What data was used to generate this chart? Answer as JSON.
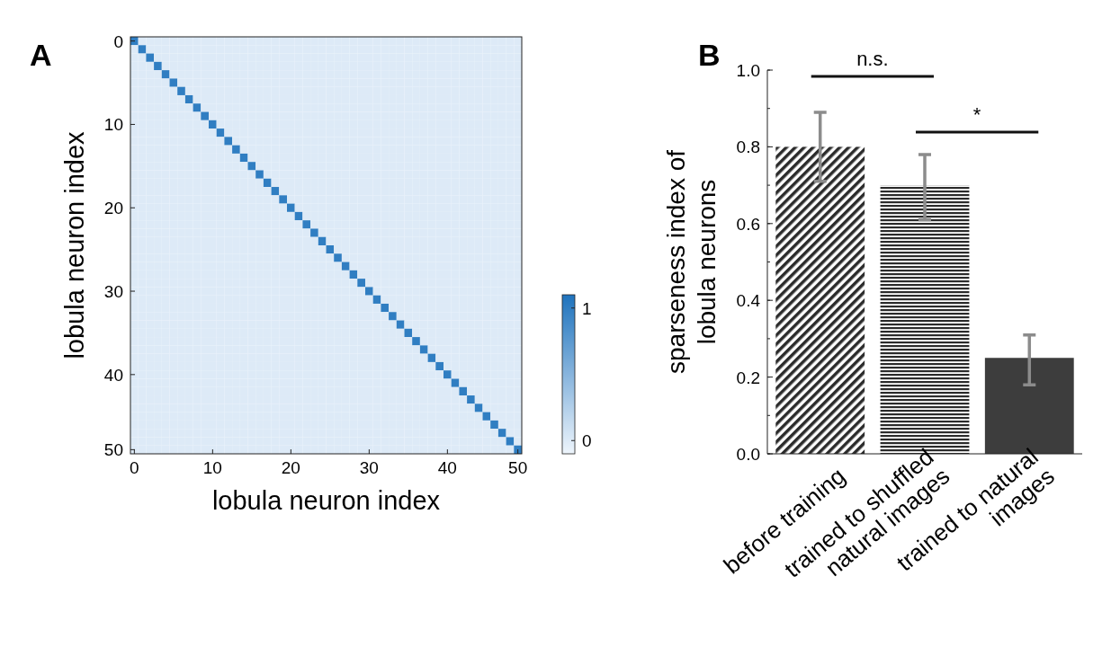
{
  "chart_data": [
    {
      "type": "heatmap",
      "title": "A",
      "xlabel": "lobula neuron index",
      "ylabel": "lobula neuron index",
      "categories": [
        "0",
        null,
        null,
        null,
        null,
        null,
        null,
        null,
        null,
        null,
        "10",
        null,
        null,
        null,
        null,
        null,
        null,
        null,
        null,
        null,
        "20",
        null,
        null,
        null,
        null,
        null,
        null,
        null,
        null,
        null,
        "30",
        null,
        null,
        null,
        null,
        null,
        null,
        null,
        null,
        null,
        "40",
        null,
        null,
        null,
        null,
        null,
        null,
        null,
        null,
        "50"
      ],
      "y_categories": [
        "0",
        null,
        null,
        null,
        null,
        null,
        null,
        null,
        null,
        null,
        "10",
        null,
        null,
        null,
        null,
        null,
        null,
        null,
        null,
        null,
        "20",
        null,
        null,
        null,
        null,
        null,
        null,
        null,
        null,
        null,
        "30",
        null,
        null,
        null,
        null,
        null,
        null,
        null,
        null,
        null,
        "40",
        null,
        null,
        null,
        null,
        null,
        null,
        null,
        null,
        "50"
      ],
      "clim": [
        -0.1,
        1.1
      ],
      "cticks": [
        0,
        1
      ],
      "cells": [
        [
          1,
          0,
          0,
          0,
          0,
          0,
          0,
          0,
          0,
          0,
          0,
          0,
          0,
          0,
          0,
          0,
          0,
          0,
          0,
          0,
          0,
          0,
          0,
          0,
          0,
          0,
          0,
          0,
          0,
          0,
          0,
          0,
          0,
          0,
          0,
          0,
          0,
          0,
          0,
          0,
          0,
          0,
          0,
          0,
          0,
          0,
          0,
          0,
          0,
          0
        ],
        [
          0,
          1,
          0,
          0,
          0,
          0,
          0,
          0,
          0,
          0,
          0,
          0,
          0,
          0,
          0,
          0,
          0,
          0,
          0,
          0,
          0,
          0,
          0,
          0,
          0,
          0,
          0,
          0,
          0,
          0,
          0,
          0,
          0,
          0,
          0,
          0,
          0,
          0,
          0,
          0,
          0,
          0,
          0,
          0,
          0,
          0,
          0,
          0,
          0,
          0
        ],
        [
          0,
          0,
          1,
          0,
          0,
          0,
          0,
          0,
          0,
          0,
          0,
          0,
          0,
          0,
          0,
          0,
          0,
          0,
          0,
          0,
          0,
          0,
          0,
          0,
          0,
          0,
          0,
          0,
          0,
          0,
          0,
          0,
          0,
          0,
          0,
          0,
          0,
          0,
          0,
          0,
          0,
          0,
          0,
          0,
          0,
          0,
          0,
          0,
          0,
          0
        ],
        [
          0,
          0,
          0,
          1,
          0,
          0,
          0,
          0,
          0,
          0,
          0,
          0,
          0,
          0,
          0,
          0,
          0,
          0,
          0,
          0,
          0,
          0,
          0,
          0,
          0,
          0,
          0,
          0,
          0,
          0,
          0,
          0,
          0,
          0,
          0,
          0,
          0,
          0,
          0,
          0,
          0,
          0,
          0,
          0,
          0,
          0,
          0,
          0,
          0,
          0
        ],
        [
          0,
          0,
          0,
          0,
          1,
          0,
          0,
          0,
          0,
          0,
          0,
          0,
          0,
          0,
          0,
          0,
          0,
          0,
          0,
          0,
          0,
          0,
          0,
          0,
          0,
          0,
          0,
          0,
          0,
          0,
          0,
          0,
          0,
          0,
          0,
          0,
          0,
          0,
          0,
          0,
          0,
          0,
          0,
          0,
          0,
          0,
          0,
          0,
          0,
          0
        ],
        [
          0,
          0,
          0,
          0,
          0,
          1,
          0,
          0,
          0,
          0,
          0,
          0,
          0,
          0,
          0,
          0,
          0,
          0,
          0,
          0,
          0,
          0,
          0,
          0,
          0,
          0,
          0,
          0,
          0,
          0,
          0,
          0,
          0,
          0,
          0,
          0,
          0,
          0,
          0,
          0,
          0,
          0,
          0,
          0,
          0,
          0,
          0,
          0,
          0,
          0
        ],
        [
          0,
          0,
          0,
          0,
          0,
          0,
          1,
          0,
          0,
          0,
          0,
          0,
          0,
          0,
          0,
          0,
          0,
          0,
          0,
          0,
          0,
          0,
          0,
          0,
          0,
          0,
          0,
          0,
          0,
          0,
          0,
          0,
          0,
          0,
          0,
          0,
          0,
          0,
          0,
          0,
          0,
          0,
          0,
          0,
          0,
          0,
          0,
          0,
          0,
          0
        ],
        [
          0,
          0,
          0,
          0,
          0,
          0,
          0,
          1,
          0,
          0,
          0,
          0,
          0,
          0,
          0,
          0,
          0,
          0,
          0,
          0,
          0,
          0,
          0,
          0,
          0,
          0,
          0,
          0,
          0,
          0,
          0,
          0,
          0,
          0,
          0,
          0,
          0,
          0,
          0,
          0,
          0,
          0,
          0,
          0,
          0,
          0,
          0,
          0,
          0,
          0
        ],
        [
          0,
          0,
          0,
          0,
          0,
          0,
          0,
          0,
          1,
          0,
          0,
          0,
          0,
          0,
          0,
          0,
          0,
          0,
          0,
          0,
          0,
          0,
          0,
          0,
          0,
          0,
          0,
          0,
          0,
          0,
          0,
          0,
          0,
          0,
          0,
          0,
          0,
          0,
          0,
          0,
          0,
          0,
          0,
          0,
          0,
          0,
          0,
          0,
          0,
          0
        ],
        [
          0,
          0,
          0,
          0,
          0,
          0,
          0,
          0,
          0,
          1,
          0,
          0,
          0,
          0,
          0,
          0,
          0,
          0,
          0,
          0,
          0,
          0,
          0,
          0,
          0,
          0,
          0,
          0,
          0,
          0,
          0,
          0,
          0,
          0,
          0,
          0,
          0,
          0,
          0,
          0,
          0,
          0,
          0,
          0,
          0,
          0,
          0,
          0,
          0,
          0
        ],
        [
          0,
          0,
          0,
          0,
          0,
          0,
          0,
          0,
          0,
          0,
          1,
          0,
          0,
          0,
          0,
          0,
          0,
          0,
          0,
          0,
          0,
          0,
          0,
          0,
          0,
          0,
          0,
          0,
          0,
          0,
          0,
          0,
          0,
          0,
          0,
          0,
          0,
          0,
          0,
          0,
          0,
          0,
          0,
          0,
          0,
          0,
          0,
          0,
          0,
          0
        ],
        [
          0,
          0,
          0,
          0,
          0,
          0,
          0,
          0,
          0,
          0,
          0,
          1,
          0,
          0,
          0,
          0,
          0,
          0,
          0,
          0,
          0,
          0,
          0,
          0,
          0,
          0,
          0,
          0,
          0,
          0,
          0,
          0,
          0,
          0,
          0,
          0,
          0,
          0,
          0,
          0,
          0,
          0,
          0,
          0,
          0,
          0,
          0,
          0,
          0,
          0
        ],
        [
          0,
          0,
          0,
          0,
          0,
          0,
          0,
          0,
          0,
          0,
          0,
          0,
          1,
          0,
          0,
          0,
          0,
          0,
          0,
          0,
          0,
          0,
          0,
          0,
          0,
          0,
          0,
          0,
          0,
          0,
          0,
          0,
          0,
          0,
          0,
          0,
          0,
          0,
          0,
          0,
          0,
          0,
          0,
          0,
          0,
          0,
          0,
          0,
          0,
          0
        ],
        [
          0,
          0,
          0,
          0,
          0,
          0,
          0,
          0,
          0,
          0,
          0,
          0,
          0,
          1,
          0,
          0,
          0,
          0,
          0,
          0,
          0,
          0,
          0,
          0,
          0,
          0,
          0,
          0,
          0,
          0,
          0,
          0,
          0,
          0,
          0,
          0,
          0,
          0,
          0,
          0,
          0,
          0,
          0,
          0,
          0,
          0,
          0,
          0,
          0,
          0
        ],
        [
          0,
          0,
          0,
          0,
          0,
          0,
          0,
          0,
          0,
          0,
          0,
          0,
          0,
          0,
          1,
          0,
          0,
          0,
          0,
          0,
          0,
          0,
          0,
          0,
          0,
          0,
          0,
          0,
          0,
          0,
          0,
          0,
          0,
          0,
          0,
          0,
          0,
          0,
          0,
          0,
          0,
          0,
          0,
          0,
          0,
          0,
          0,
          0,
          0,
          0
        ],
        [
          0,
          0,
          0,
          0,
          0,
          0,
          0,
          0,
          0,
          0,
          0,
          0,
          0,
          0,
          0,
          1,
          0,
          0,
          0,
          0,
          0,
          0,
          0,
          0,
          0,
          0,
          0,
          0,
          0,
          0,
          0,
          0,
          0,
          0,
          0,
          0,
          0,
          0,
          0,
          0,
          0,
          0,
          0,
          0,
          0,
          0,
          0,
          0,
          0,
          0
        ],
        [
          0,
          0,
          0,
          0,
          0,
          0,
          0,
          0,
          0,
          0,
          0,
          0,
          0,
          0,
          0,
          0,
          1,
          0,
          0,
          0,
          0,
          0,
          0,
          0,
          0,
          0,
          0,
          0,
          0,
          0,
          0,
          0,
          0,
          0,
          0,
          0,
          0,
          0,
          0,
          0,
          0,
          0,
          0,
          0,
          0,
          0,
          0,
          0,
          0,
          0
        ],
        [
          0,
          0,
          0,
          0,
          0,
          0,
          0,
          0,
          0,
          0,
          0,
          0,
          0,
          0,
          0,
          0,
          0,
          1,
          0,
          0,
          0,
          0,
          0,
          0,
          0,
          0,
          0,
          0,
          0,
          0,
          0,
          0,
          0,
          0,
          0,
          0,
          0,
          0,
          0,
          0,
          0,
          0,
          0,
          0,
          0,
          0,
          0,
          0,
          0,
          0
        ],
        [
          0,
          0,
          0,
          0,
          0,
          0,
          0,
          0,
          0,
          0,
          0,
          0,
          0,
          0,
          0,
          0,
          0,
          0,
          1,
          0,
          0,
          0,
          0,
          0,
          0,
          0,
          0,
          0,
          0,
          0,
          0,
          0,
          0,
          0,
          0,
          0,
          0,
          0,
          0,
          0,
          0,
          0,
          0,
          0,
          0,
          0,
          0,
          0,
          0,
          0
        ],
        [
          0,
          0,
          0,
          0,
          0,
          0,
          0,
          0,
          0,
          0,
          0,
          0,
          0,
          0,
          0,
          0,
          0,
          0,
          0,
          1,
          0,
          0,
          0,
          0,
          0,
          0,
          0,
          0,
          0,
          0,
          0,
          0,
          0,
          0,
          0,
          0,
          0,
          0,
          0,
          0,
          0,
          0,
          0,
          0,
          0,
          0,
          0,
          0,
          0,
          0
        ],
        [
          0,
          0,
          0,
          0,
          0,
          0,
          0,
          0,
          0,
          0,
          0,
          0,
          0,
          0,
          0,
          0,
          0,
          0,
          0,
          0,
          1,
          0,
          0,
          0,
          0,
          0,
          0,
          0,
          0,
          0,
          0,
          0,
          0,
          0,
          0,
          0,
          0,
          0,
          0,
          0,
          0,
          0,
          0,
          0,
          0,
          0,
          0,
          0,
          0,
          0
        ],
        [
          0,
          0,
          0,
          0,
          0,
          0,
          0,
          0,
          0,
          0,
          0,
          0,
          0,
          0,
          0,
          0,
          0,
          0,
          0,
          0,
          0,
          1,
          0,
          0,
          0,
          0,
          0,
          0,
          0,
          0,
          0,
          0,
          0,
          0,
          0,
          0,
          0,
          0,
          0,
          0,
          0,
          0,
          0,
          0,
          0,
          0,
          0,
          0,
          0,
          0
        ],
        [
          0,
          0,
          0,
          0,
          0,
          0,
          0,
          0,
          0,
          0,
          0,
          0,
          0,
          0,
          0,
          0,
          0,
          0,
          0,
          0,
          0,
          0,
          1,
          0,
          0,
          0,
          0,
          0,
          0,
          0,
          0,
          0,
          0,
          0,
          0,
          0,
          0,
          0,
          0,
          0,
          0,
          0,
          0,
          0,
          0,
          0,
          0,
          0,
          0,
          0
        ],
        [
          0,
          0,
          0,
          0,
          0,
          0,
          0,
          0,
          0,
          0,
          0,
          0,
          0,
          0,
          0,
          0,
          0,
          0,
          0,
          0,
          0,
          0,
          0,
          1,
          0,
          0,
          0,
          0,
          0,
          0,
          0,
          0,
          0,
          0,
          0,
          0,
          0,
          0,
          0,
          0,
          0,
          0,
          0,
          0,
          0,
          0,
          0,
          0,
          0,
          0
        ],
        [
          0,
          0,
          0,
          0,
          0,
          0,
          0,
          0,
          0,
          0,
          0,
          0,
          0,
          0,
          0,
          0,
          0,
          0,
          0,
          0,
          0,
          0,
          0,
          0,
          1,
          0,
          0,
          0,
          0,
          0,
          0,
          0,
          0,
          0,
          0,
          0,
          0,
          0,
          0,
          0,
          0,
          0,
          0,
          0,
          0,
          0,
          0,
          0,
          0,
          0
        ],
        [
          0,
          0,
          0,
          0,
          0,
          0,
          0,
          0,
          0,
          0,
          0,
          0,
          0,
          0,
          0,
          0,
          0,
          0,
          0,
          0,
          0,
          0,
          0,
          0,
          0,
          1,
          0,
          0,
          0,
          0,
          0,
          0,
          0,
          0,
          0,
          0,
          0,
          0,
          0,
          0,
          0,
          0,
          0,
          0,
          0,
          0,
          0,
          0,
          0,
          0
        ],
        [
          0,
          0,
          0,
          0,
          0,
          0,
          0,
          0,
          0,
          0,
          0,
          0,
          0,
          0,
          0,
          0,
          0,
          0,
          0,
          0,
          0,
          0,
          0,
          0,
          0,
          0,
          1,
          0,
          0,
          0,
          0,
          0,
          0,
          0,
          0,
          0,
          0,
          0,
          0,
          0,
          0,
          0,
          0,
          0,
          0,
          0,
          0,
          0,
          0,
          0
        ],
        [
          0,
          0,
          0,
          0,
          0,
          0,
          0,
          0,
          0,
          0,
          0,
          0,
          0,
          0,
          0,
          0,
          0,
          0,
          0,
          0,
          0,
          0,
          0,
          0,
          0,
          0,
          0,
          1,
          0,
          0,
          0,
          0,
          0,
          0,
          0,
          0,
          0,
          0,
          0,
          0,
          0,
          0,
          0,
          0,
          0,
          0,
          0,
          0,
          0,
          0
        ],
        [
          0,
          0,
          0,
          0,
          0,
          0,
          0,
          0,
          0,
          0,
          0,
          0,
          0,
          0,
          0,
          0,
          0,
          0,
          0,
          0,
          0,
          0,
          0,
          0,
          0,
          0,
          0,
          0,
          1,
          0,
          0,
          0,
          0,
          0,
          0,
          0,
          0,
          0,
          0,
          0,
          0,
          0,
          0,
          0,
          0,
          0,
          0,
          0,
          0,
          0
        ],
        [
          0,
          0,
          0,
          0,
          0,
          0,
          0,
          0,
          0,
          0,
          0,
          0,
          0,
          0,
          0,
          0,
          0,
          0,
          0,
          0,
          0,
          0,
          0,
          0,
          0,
          0,
          0,
          0,
          0,
          1,
          0,
          0,
          0,
          0,
          0,
          0,
          0,
          0,
          0,
          0,
          0,
          0,
          0,
          0,
          0,
          0,
          0,
          0,
          0,
          0
        ],
        [
          0,
          0,
          0,
          0,
          0,
          0,
          0,
          0,
          0,
          0,
          0,
          0,
          0,
          0,
          0,
          0,
          0,
          0,
          0,
          0,
          0,
          0,
          0,
          0,
          0,
          0,
          0,
          0,
          0,
          0,
          1,
          0,
          0,
          0,
          0,
          0,
          0,
          0,
          0,
          0,
          0,
          0,
          0,
          0,
          0,
          0,
          0,
          0,
          0,
          0
        ],
        [
          0,
          0,
          0,
          0,
          0,
          0,
          0,
          0,
          0,
          0,
          0,
          0,
          0,
          0,
          0,
          0,
          0,
          0,
          0,
          0,
          0,
          0,
          0,
          0,
          0,
          0,
          0,
          0,
          0,
          0,
          0,
          1,
          0,
          0,
          0,
          0,
          0,
          0,
          0,
          0,
          0,
          0,
          0,
          0,
          0,
          0,
          0,
          0,
          0,
          0
        ],
        [
          0,
          0,
          0,
          0,
          0,
          0,
          0,
          0,
          0,
          0,
          0,
          0,
          0,
          0,
          0,
          0,
          0,
          0,
          0,
          0,
          0,
          0,
          0,
          0,
          0,
          0,
          0,
          0,
          0,
          0,
          0,
          0,
          1,
          0,
          0,
          0,
          0,
          0,
          0,
          0,
          0,
          0,
          0,
          0,
          0,
          0,
          0,
          0,
          0,
          0
        ],
        [
          0,
          0,
          0,
          0,
          0,
          0,
          0,
          0,
          0,
          0,
          0,
          0,
          0,
          0,
          0,
          0,
          0,
          0,
          0,
          0,
          0,
          0,
          0,
          0,
          0,
          0,
          0,
          0,
          0,
          0,
          0,
          0,
          0,
          1,
          0,
          0,
          0,
          0,
          0,
          0,
          0,
          0,
          0,
          0,
          0,
          0,
          0,
          0,
          0,
          0
        ],
        [
          0,
          0,
          0,
          0,
          0,
          0,
          0,
          0,
          0,
          0,
          0,
          0,
          0,
          0,
          0,
          0,
          0,
          0,
          0,
          0,
          0,
          0,
          0,
          0,
          0,
          0,
          0,
          0,
          0,
          0,
          0,
          0,
          0,
          0,
          1,
          0,
          0,
          0,
          0,
          0,
          0,
          0,
          0,
          0,
          0,
          0,
          0,
          0,
          0,
          0
        ],
        [
          0,
          0,
          0,
          0,
          0,
          0,
          0,
          0,
          0,
          0,
          0,
          0,
          0,
          0,
          0,
          0,
          0,
          0,
          0,
          0,
          0,
          0,
          0,
          0,
          0,
          0,
          0,
          0,
          0,
          0,
          0,
          0,
          0,
          0,
          0,
          1,
          0,
          0,
          0,
          0,
          0,
          0,
          0,
          0,
          0,
          0,
          0,
          0,
          0,
          0
        ],
        [
          0,
          0,
          0,
          0,
          0,
          0,
          0,
          0,
          0,
          0,
          0,
          0,
          0,
          0,
          0,
          0,
          0,
          0,
          0,
          0,
          0,
          0,
          0,
          0,
          0,
          0,
          0,
          0,
          0,
          0,
          0,
          0,
          0,
          0,
          0,
          0,
          1,
          0,
          0,
          0,
          0,
          0,
          0,
          0,
          0,
          0,
          0,
          0,
          0,
          0
        ],
        [
          0,
          0,
          0,
          0,
          0,
          0,
          0,
          0,
          0,
          0,
          0,
          0,
          0,
          0,
          0,
          0,
          0,
          0,
          0,
          0,
          0,
          0,
          0,
          0,
          0,
          0,
          0,
          0,
          0,
          0,
          0,
          0,
          0,
          0,
          0,
          0,
          0,
          1,
          0,
          0,
          0,
          0,
          0,
          0,
          0,
          0,
          0,
          0,
          0,
          0
        ],
        [
          0,
          0,
          0,
          0,
          0,
          0,
          0,
          0,
          0,
          0,
          0,
          0,
          0,
          0,
          0,
          0,
          0,
          0,
          0,
          0,
          0,
          0,
          0,
          0,
          0,
          0,
          0,
          0,
          0,
          0,
          0,
          0,
          0,
          0,
          0,
          0,
          0,
          0,
          1,
          0,
          0,
          0,
          0,
          0,
          0,
          0,
          0,
          0,
          0,
          0
        ],
        [
          0,
          0,
          0,
          0,
          0,
          0,
          0,
          0,
          0,
          0,
          0,
          0,
          0,
          0,
          0,
          0,
          0,
          0,
          0,
          0,
          0,
          0,
          0,
          0,
          0,
          0,
          0,
          0,
          0,
          0,
          0,
          0,
          0,
          0,
          0,
          0,
          0,
          0,
          0,
          1,
          0,
          0,
          0,
          0,
          0,
          0,
          0,
          0,
          0,
          0
        ],
        [
          0,
          0,
          0,
          0,
          0,
          0,
          0,
          0,
          0,
          0,
          0,
          0,
          0,
          0,
          0,
          0,
          0,
          0,
          0,
          0,
          0,
          0,
          0,
          0,
          0,
          0,
          0,
          0,
          0,
          0,
          0,
          0,
          0,
          0,
          0,
          0,
          0,
          0,
          0,
          0,
          1,
          0,
          0,
          0,
          0,
          0,
          0,
          0,
          0,
          0
        ],
        [
          0,
          0,
          0,
          0,
          0,
          0,
          0,
          0,
          0,
          0,
          0,
          0,
          0,
          0,
          0,
          0,
          0,
          0,
          0,
          0,
          0,
          0,
          0,
          0,
          0,
          0,
          0,
          0,
          0,
          0,
          0,
          0,
          0,
          0,
          0,
          0,
          0,
          0,
          0,
          0,
          0,
          1,
          0,
          0,
          0,
          0,
          0,
          0,
          0,
          0
        ],
        [
          0,
          0,
          0,
          0,
          0,
          0,
          0,
          0,
          0,
          0,
          0,
          0,
          0,
          0,
          0,
          0,
          0,
          0,
          0,
          0,
          0,
          0,
          0,
          0,
          0,
          0,
          0,
          0,
          0,
          0,
          0,
          0,
          0,
          0,
          0,
          0,
          0,
          0,
          0,
          0,
          0,
          0,
          1,
          0,
          0,
          0,
          0,
          0,
          0,
          0
        ],
        [
          0,
          0,
          0,
          0,
          0,
          0,
          0,
          0,
          0,
          0,
          0,
          0,
          0,
          0,
          0,
          0,
          0,
          0,
          0,
          0,
          0,
          0,
          0,
          0,
          0,
          0,
          0,
          0,
          0,
          0,
          0,
          0,
          0,
          0,
          0,
          0,
          0,
          0,
          0,
          0,
          0,
          0,
          0,
          1,
          0,
          0,
          0,
          0,
          0,
          0
        ],
        [
          0,
          0,
          0,
          0,
          0,
          0,
          0,
          0,
          0,
          0,
          0,
          0,
          0,
          0,
          0,
          0,
          0,
          0,
          0,
          0,
          0,
          0,
          0,
          0,
          0,
          0,
          0,
          0,
          0,
          0,
          0,
          0,
          0,
          0,
          0,
          0,
          0,
          0,
          0,
          0,
          0,
          0,
          0,
          0,
          1,
          0,
          0,
          0,
          0,
          0
        ],
        [
          0,
          0,
          0,
          0,
          0,
          0,
          0,
          0,
          0,
          0,
          0,
          0,
          0,
          0,
          0,
          0,
          0,
          0,
          0,
          0,
          0,
          0,
          0,
          0,
          0,
          0,
          0,
          0,
          0,
          0,
          0,
          0,
          0,
          0,
          0,
          0,
          0,
          0,
          0,
          0,
          0,
          0,
          0,
          0,
          0,
          1,
          0,
          0,
          0,
          0
        ],
        [
          0,
          0,
          0,
          0,
          0,
          0,
          0,
          0,
          0,
          0,
          0,
          0,
          0,
          0,
          0,
          0,
          0,
          0,
          0,
          0,
          0,
          0,
          0,
          0,
          0,
          0,
          0,
          0,
          0,
          0,
          0,
          0,
          0,
          0,
          0,
          0,
          0,
          0,
          0,
          0,
          0,
          0,
          0,
          0,
          0,
          0,
          1,
          0,
          0,
          0
        ],
        [
          0,
          0,
          0,
          0,
          0,
          0,
          0,
          0,
          0,
          0,
          0,
          0,
          0,
          0,
          0,
          0,
          0,
          0,
          0,
          0,
          0,
          0,
          0,
          0,
          0,
          0,
          0,
          0,
          0,
          0,
          0,
          0,
          0,
          0,
          0,
          0,
          0,
          0,
          0,
          0,
          0,
          0,
          0,
          0,
          0,
          0,
          0,
          1,
          0,
          0
        ],
        [
          0,
          0,
          0,
          0,
          0,
          0,
          0,
          0,
          0,
          0,
          0,
          0,
          0,
          0,
          0,
          0,
          0,
          0,
          0,
          0,
          0,
          0,
          0,
          0,
          0,
          0,
          0,
          0,
          0,
          0,
          0,
          0,
          0,
          0,
          0,
          0,
          0,
          0,
          0,
          0,
          0,
          0,
          0,
          0,
          0,
          0,
          0,
          0,
          1,
          0
        ],
        [
          0,
          0,
          0,
          0,
          0,
          0,
          0,
          0,
          0,
          0,
          0,
          0,
          0,
          0,
          0,
          0,
          0,
          0,
          0,
          0,
          0,
          0,
          0,
          0,
          0,
          0,
          0,
          0,
          0,
          0,
          0,
          0,
          0,
          0,
          0,
          0,
          0,
          0,
          0,
          0,
          0,
          0,
          0,
          0,
          0,
          0,
          0,
          0,
          0,
          1
        ]
      ]
    },
    {
      "type": "bar",
      "title": "B",
      "ylabel": "sparseness index of\nlobula neurons",
      "categories": [
        "before training",
        "trained to shuffled\nnatural images",
        "trained to natural\nimages"
      ],
      "values": [
        0.8,
        0.7,
        0.25
      ],
      "colors": [
        "#2b2b2b",
        "#2b2b2b",
        "#3d3d3d"
      ],
      "errors": [
        [
          0.71,
          0.89
        ],
        [
          0.61,
          0.78
        ],
        [
          0.18,
          0.31
        ]
      ],
      "ylim": [
        0,
        1
      ],
      "yticks": [
        {
          "value": 0,
          "label": "0.0"
        },
        {
          "value": 0.2,
          "label": "0.2"
        },
        {
          "value": 0.4,
          "label": "0.4"
        },
        {
          "value": 0.6,
          "label": "0.6"
        },
        {
          "value": 0.8,
          "label": "0.8"
        },
        {
          "value": 1,
          "label": "1.0"
        }
      ],
      "annotations": [
        "n.s.",
        "*"
      ]
    }
  ]
}
